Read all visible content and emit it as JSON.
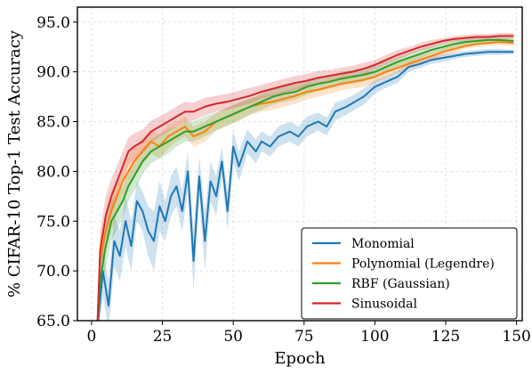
{
  "chart_data": {
    "type": "line",
    "xlabel": "Epoch",
    "ylabel": "% CIFAR-10 Top-1 Test Accuracy",
    "xlim": [
      -5,
      152
    ],
    "ylim": [
      65,
      96.5
    ],
    "xticks": [
      0,
      25,
      50,
      75,
      100,
      125,
      150
    ],
    "xtick_labels": [
      "0",
      "25",
      "50",
      "75",
      "100",
      "125",
      "150"
    ],
    "yticks": [
      65,
      70,
      75,
      80,
      85,
      90,
      95
    ],
    "ytick_labels": [
      "65.0",
      "70.0",
      "75.0",
      "80.0",
      "85.0",
      "90.0",
      "95.0"
    ],
    "grid": true,
    "legend_position": "lower-right",
    "shaded_bands": true,
    "series": [
      {
        "name": "Monomial",
        "color": "#1f77b4",
        "x": [
          2,
          4,
          6,
          8,
          10,
          12,
          14,
          16,
          18,
          20,
          22,
          24,
          26,
          28,
          30,
          32,
          34,
          36,
          38,
          40,
          42,
          44,
          46,
          48,
          50,
          52,
          55,
          58,
          60,
          63,
          66,
          70,
          73,
          76,
          80,
          83,
          86,
          90,
          93,
          96,
          100,
          104,
          108,
          112,
          116,
          120,
          124,
          128,
          132,
          136,
          140,
          144,
          149
        ],
        "y": [
          64,
          70,
          66.5,
          73,
          71.5,
          75,
          72.5,
          77,
          76,
          74,
          73,
          76.5,
          75,
          77.5,
          78.5,
          76,
          80,
          71,
          79.5,
          73,
          79,
          77.5,
          81,
          76,
          82.5,
          80.5,
          83,
          82,
          83,
          82.5,
          83.5,
          84,
          83.5,
          84.5,
          85,
          84.5,
          86,
          86.5,
          87,
          87.5,
          88.5,
          89,
          89.5,
          90.5,
          90.8,
          91.2,
          91.4,
          91.6,
          91.8,
          91.9,
          92.0,
          92.0,
          92.0
        ],
        "band": [
          1.2,
          2.5,
          2.5,
          2.5,
          2.5,
          2.5,
          2.5,
          2.0,
          2.0,
          2.5,
          3.0,
          2.5,
          2.0,
          2.0,
          2.0,
          2.0,
          2.0,
          3.0,
          2.0,
          3.0,
          2.0,
          2.0,
          1.5,
          2.0,
          1.5,
          1.5,
          1.2,
          1.2,
          1.0,
          1.0,
          1.0,
          1.0,
          1.0,
          1.0,
          0.9,
          0.9,
          0.9,
          0.8,
          0.8,
          0.8,
          0.7,
          0.6,
          0.6,
          0.5,
          0.4,
          0.4,
          0.4,
          0.3,
          0.3,
          0.3,
          0.3,
          0.3,
          0.2
        ]
      },
      {
        "name": "Polynomial (Legendre)",
        "color": "#ff7f0e",
        "x": [
          2,
          3,
          5,
          7,
          9,
          11,
          13,
          15,
          18,
          21,
          24,
          27,
          30,
          33,
          36,
          40,
          44,
          48,
          52,
          56,
          60,
          64,
          68,
          72,
          76,
          80,
          84,
          88,
          92,
          96,
          100,
          104,
          108,
          112,
          116,
          120,
          124,
          128,
          132,
          136,
          140,
          144,
          149
        ],
        "y": [
          64,
          71,
          74,
          76,
          77.5,
          79,
          80,
          81,
          82,
          83,
          82.5,
          83.5,
          84,
          84.5,
          83.5,
          84,
          85,
          85.5,
          86,
          86.5,
          86.8,
          87,
          87.3,
          87.6,
          88,
          88.2,
          88.5,
          88.8,
          89,
          89.2,
          89.5,
          90,
          90.4,
          90.8,
          91.2,
          91.6,
          92,
          92.3,
          92.6,
          92.8,
          92.9,
          93.0,
          92.9
        ],
        "band": [
          1.0,
          2.0,
          2.0,
          2.0,
          1.8,
          1.5,
          1.5,
          1.5,
          1.3,
          1.2,
          1.2,
          1.2,
          1.0,
          1.0,
          1.0,
          1.0,
          0.9,
          0.9,
          0.9,
          0.8,
          0.8,
          0.8,
          0.8,
          0.8,
          0.8,
          0.7,
          0.7,
          0.7,
          0.7,
          0.7,
          0.6,
          0.6,
          0.5,
          0.5,
          0.5,
          0.4,
          0.4,
          0.4,
          0.3,
          0.3,
          0.3,
          0.3,
          0.3
        ]
      },
      {
        "name": "RBF (Gaussian)",
        "color": "#2ca02c",
        "x": [
          2,
          3,
          5,
          7,
          9,
          11,
          13,
          15,
          18,
          21,
          24,
          27,
          30,
          33,
          36,
          40,
          44,
          48,
          52,
          56,
          60,
          64,
          68,
          72,
          76,
          80,
          84,
          88,
          92,
          96,
          100,
          104,
          108,
          112,
          116,
          120,
          124,
          128,
          132,
          136,
          140,
          144,
          149
        ],
        "y": [
          64,
          69,
          72.5,
          75,
          76,
          77,
          78.5,
          79.5,
          81,
          82,
          82.5,
          83,
          83.5,
          84,
          84,
          84.5,
          85,
          85.5,
          86,
          86.5,
          87,
          87.5,
          87.8,
          88,
          88.5,
          88.8,
          89,
          89.3,
          89.5,
          89.7,
          90,
          90.5,
          91,
          91.4,
          91.8,
          92.2,
          92.5,
          92.8,
          93,
          93.1,
          93.2,
          93.2,
          93.1
        ],
        "band": [
          1.0,
          2.0,
          2.0,
          2.0,
          1.8,
          1.5,
          1.5,
          1.5,
          1.3,
          1.2,
          1.2,
          1.2,
          1.0,
          1.0,
          1.0,
          1.0,
          0.9,
          0.9,
          0.9,
          0.8,
          0.8,
          0.8,
          0.8,
          0.8,
          0.8,
          0.7,
          0.7,
          0.7,
          0.7,
          0.7,
          0.6,
          0.6,
          0.5,
          0.5,
          0.5,
          0.4,
          0.4,
          0.4,
          0.3,
          0.3,
          0.3,
          0.3,
          0.3
        ]
      },
      {
        "name": "Sinusoidal",
        "color": "#d62728",
        "x": [
          2,
          3,
          5,
          7,
          9,
          11,
          13,
          15,
          18,
          21,
          24,
          27,
          30,
          33,
          36,
          40,
          44,
          48,
          52,
          56,
          60,
          64,
          68,
          72,
          76,
          80,
          84,
          88,
          92,
          96,
          100,
          104,
          108,
          112,
          116,
          120,
          124,
          128,
          132,
          136,
          140,
          144,
          149
        ],
        "y": [
          64,
          72,
          75.5,
          77.5,
          79,
          80.5,
          82,
          82.5,
          83,
          84,
          84.5,
          85,
          85.5,
          86,
          86,
          86.5,
          86.8,
          87,
          87.3,
          87.6,
          88,
          88.3,
          88.6,
          88.9,
          89.1,
          89.4,
          89.6,
          89.8,
          90,
          90.3,
          90.7,
          91.2,
          91.7,
          92.1,
          92.5,
          92.8,
          93.1,
          93.3,
          93.4,
          93.5,
          93.5,
          93.6,
          93.6
        ],
        "band": [
          1.0,
          2.0,
          2.0,
          1.8,
          1.6,
          1.5,
          1.4,
          1.3,
          1.2,
          1.1,
          1.0,
          1.0,
          1.0,
          1.0,
          0.9,
          0.9,
          0.8,
          0.8,
          0.8,
          0.8,
          0.7,
          0.7,
          0.7,
          0.7,
          0.7,
          0.7,
          0.6,
          0.6,
          0.6,
          0.6,
          0.5,
          0.5,
          0.5,
          0.4,
          0.4,
          0.4,
          0.3,
          0.3,
          0.3,
          0.3,
          0.3,
          0.3,
          0.3
        ]
      }
    ]
  }
}
